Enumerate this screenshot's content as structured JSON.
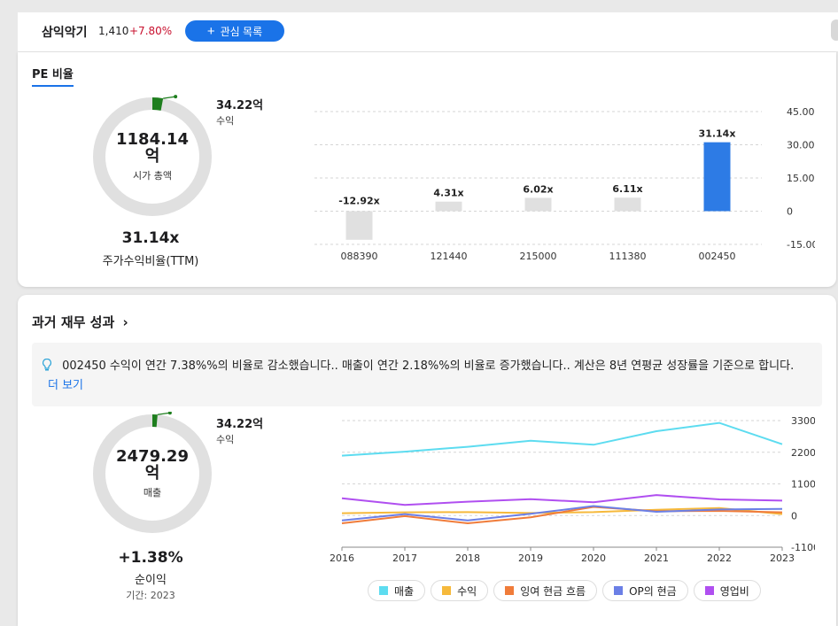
{
  "header": {
    "stock_name": "삼익악기",
    "price": "1,410",
    "change": "+7.80%",
    "watchlist_button": "관심 목록"
  },
  "pe_section": {
    "tab_label": "PE 비율",
    "donut": {
      "center_value": "1184.14",
      "center_unit": "억",
      "center_label": "시가 총액",
      "fill_fraction": 0.029,
      "fill_color": "#1e7e1e",
      "track_color": "#e0e0e0"
    },
    "legend_value": "34.22억",
    "legend_label": "수익",
    "metric_value": "31.14x",
    "metric_label": "주가수익비율(TTM)"
  },
  "chart_data": [
    {
      "type": "bar",
      "categories": [
        "088390",
        "121440",
        "215000",
        "111380",
        "002450"
      ],
      "values": [
        -12.92,
        4.31,
        6.02,
        6.11,
        31.14
      ],
      "data_labels": [
        "-12.92x",
        "4.31x",
        "6.02x",
        "6.11x",
        "31.14x"
      ],
      "highlight_index": 4,
      "colors": {
        "normal": "#e0e0e0",
        "highlight": "#2d7be5"
      },
      "ylim": [
        -15,
        45
      ],
      "yticks": [
        "45.00",
        "30.00",
        "15.00",
        "0",
        "-15.00"
      ],
      "ytick_values": [
        45,
        30,
        15,
        0,
        -15
      ]
    },
    {
      "type": "line",
      "x": [
        "2016",
        "2017",
        "2018",
        "2019",
        "2020",
        "2021",
        "2022",
        "2023"
      ],
      "ylim": [
        -1100,
        3300
      ],
      "yticks": [
        "3300억",
        "2200억",
        "1100억",
        "0",
        "-1100억"
      ],
      "ytick_values": [
        3300,
        2200,
        1100,
        0,
        -1100
      ],
      "series": [
        {
          "name": "매출",
          "color": "#5ddcf0",
          "values": [
            2080,
            2220,
            2390,
            2600,
            2460,
            2930,
            3220,
            2480
          ]
        },
        {
          "name": "수익",
          "color": "#f6b93b",
          "values": [
            80,
            110,
            120,
            90,
            120,
            200,
            260,
            50
          ]
        },
        {
          "name": "잉여 현금 흐름",
          "color": "#f07c3a",
          "values": [
            -270,
            -20,
            -270,
            -60,
            300,
            150,
            160,
            110
          ]
        },
        {
          "name": "OP의 현금",
          "color": "#6b7fe6",
          "values": [
            -170,
            50,
            -170,
            60,
            330,
            130,
            210,
            230
          ]
        },
        {
          "name": "영업비",
          "color": "#b04ff0",
          "values": [
            600,
            370,
            480,
            570,
            460,
            710,
            560,
            520
          ]
        }
      ]
    }
  ],
  "financial_section": {
    "title": "과거 재무 성과",
    "insight_text": "002450 수익이 연간 7.38%%의 비율로 감소했습니다.. 매출이 연간 2.18%%의 비율로 증가했습니다.. 계산은 8년 연평균 성장률을 기준으로 합니다.",
    "insight_more": "더 보기",
    "donut": {
      "center_value": "2479.29",
      "center_unit": "억",
      "center_label": "매출",
      "fill_fraction": 0.014,
      "fill_color": "#1e7e1e",
      "track_color": "#e0e0e0"
    },
    "legend_value": "34.22억",
    "legend_label": "수익",
    "metric_value": "+1.38%",
    "metric_label": "순이익",
    "period": "기간: 2023"
  }
}
